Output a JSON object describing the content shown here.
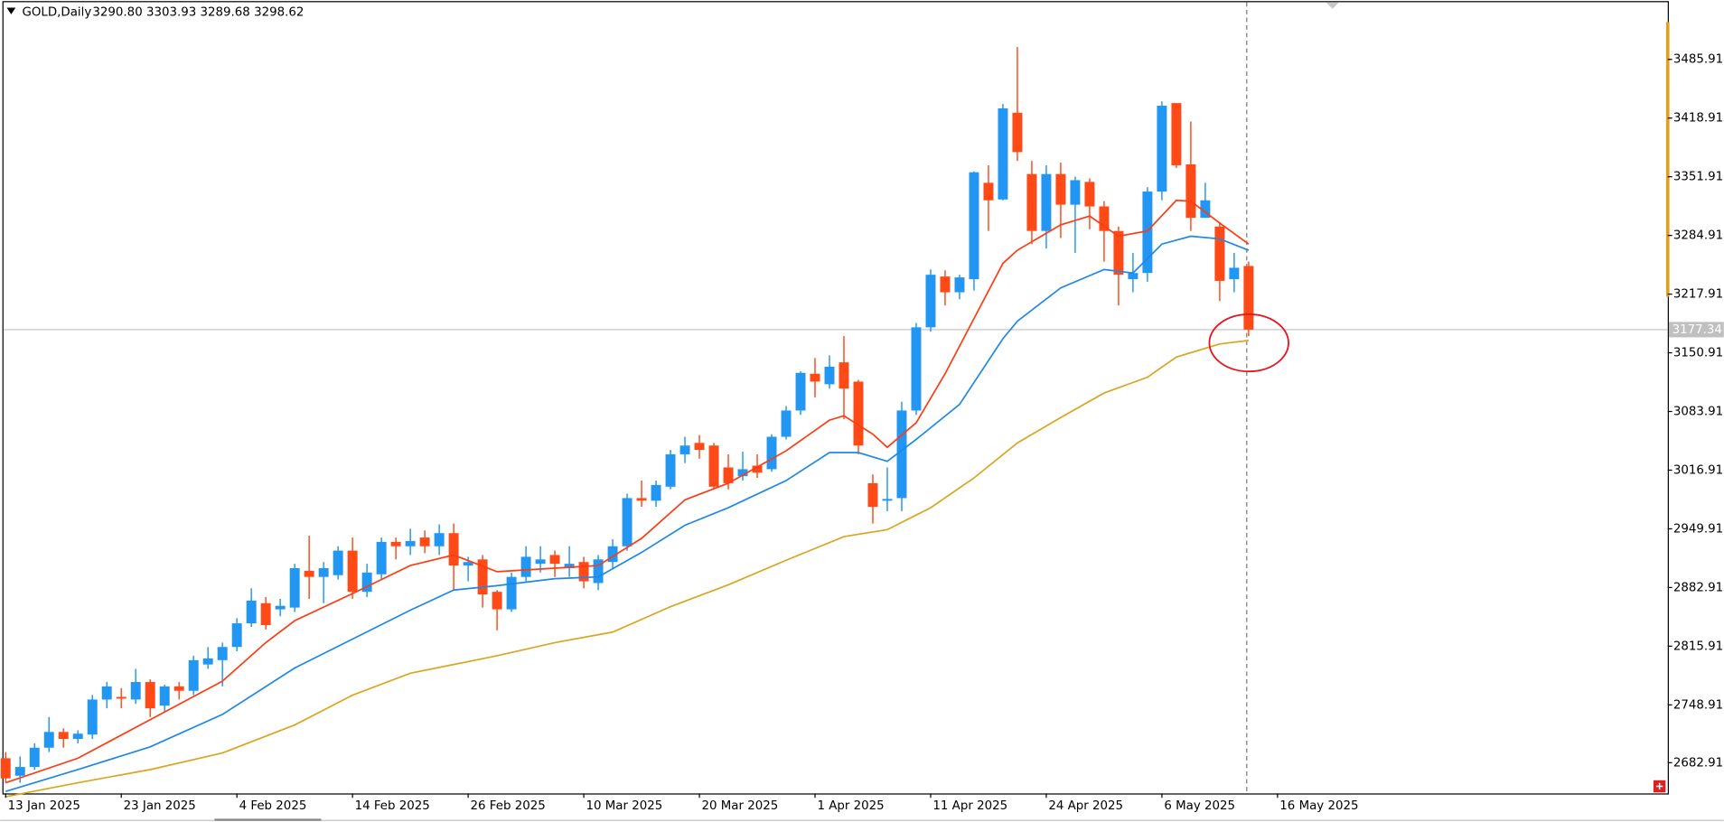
{
  "chart_data": {
    "type": "candlestick",
    "title": "GOLD,Daily",
    "subtitle": "3290.80 3303.93 3289.68 3298.62",
    "bull_color": "#2196f3",
    "bear_color": "#ff4a17",
    "open": [
      2688,
      2668,
      2678,
      2700,
      2718,
      2710,
      2715,
      2755,
      2758,
      2755,
      2775,
      2748,
      2770,
      2765,
      2795,
      2800,
      2815,
      2842,
      2865,
      2858,
      2860,
      2902,
      2895,
      2897,
      2925,
      2878,
      2898,
      2935,
      2930,
      2940,
      2930,
      2945,
      2908,
      2915,
      2878,
      2858,
      2895,
      2910,
      2920,
      2905,
      2912,
      2888,
      2912,
      2930,
      2985,
      2982,
      2998,
      3035,
      3048,
      3045,
      3020,
      3010,
      3022,
      3018,
      3055,
      3085,
      3127,
      3115,
      3140,
      3118,
      3002,
      2982,
      2985,
      3085,
      3180,
      3238,
      3220,
      3235,
      3345,
      3326,
      3425,
      3355,
      3290,
      3355,
      3320,
      3346,
      3318,
      3290,
      3235,
      3242,
      3335,
      3436,
      3366,
      3305,
      3295,
      3235,
      3250
    ],
    "high": [
      2695,
      2690,
      2705,
      2735,
      2722,
      2720,
      2760,
      2775,
      2768,
      2790,
      2778,
      2772,
      2775,
      2805,
      2815,
      2820,
      2848,
      2882,
      2872,
      2870,
      2910,
      2942,
      2912,
      2930,
      2940,
      2910,
      2940,
      2940,
      2950,
      2948,
      2955,
      2956,
      2918,
      2920,
      2880,
      2900,
      2930,
      2930,
      2925,
      2930,
      2918,
      2920,
      2938,
      2990,
      3005,
      3005,
      3040,
      3055,
      3057,
      3048,
      3035,
      3038,
      3035,
      3058,
      3090,
      3130,
      3145,
      3148,
      3170,
      3120,
      3012,
      3020,
      3095,
      3185,
      3246,
      3245,
      3240,
      3358,
      3365,
      3435,
      3500,
      3370,
      3365,
      3368,
      3352,
      3350,
      3324,
      3295,
      3265,
      3340,
      3438,
      3436,
      3415,
      3345,
      3300,
      3265,
      3255
    ],
    "low": [
      2660,
      2660,
      2675,
      2695,
      2700,
      2705,
      2710,
      2745,
      2745,
      2750,
      2735,
      2740,
      2755,
      2760,
      2790,
      2770,
      2810,
      2838,
      2835,
      2850,
      2855,
      2870,
      2865,
      2892,
      2870,
      2872,
      2892,
      2915,
      2920,
      2922,
      2920,
      2880,
      2890,
      2860,
      2834,
      2855,
      2890,
      2900,
      2895,
      2895,
      2882,
      2880,
      2905,
      2925,
      2975,
      2975,
      2995,
      3025,
      3030,
      2995,
      2995,
      3005,
      3008,
      3015,
      3052,
      3080,
      3100,
      3110,
      3075,
      3035,
      2956,
      2970,
      2970,
      3080,
      3175,
      3205,
      3212,
      3222,
      3290,
      3325,
      3370,
      3275,
      3270,
      3282,
      3265,
      3292,
      3255,
      3205,
      3220,
      3232,
      3325,
      3362,
      3290,
      3305,
      3210,
      3220,
      3170
    ],
    "close": [
      2665,
      2678,
      2700,
      2718,
      2710,
      2716,
      2755,
      2770,
      2756,
      2775,
      2745,
      2770,
      2765,
      2800,
      2802,
      2815,
      2842,
      2868,
      2840,
      2862,
      2905,
      2895,
      2905,
      2925,
      2878,
      2900,
      2935,
      2930,
      2936,
      2930,
      2945,
      2908,
      2912,
      2875,
      2858,
      2895,
      2918,
      2915,
      2910,
      2910,
      2890,
      2915,
      2930,
      2985,
      2982,
      3000,
      3035,
      3045,
      3040,
      2998,
      3002,
      3018,
      3014,
      3055,
      3085,
      3128,
      3118,
      3135,
      3110,
      3045,
      2975,
      2984,
      3085,
      3180,
      3240,
      3220,
      3237,
      3357,
      3325,
      3430,
      3380,
      3290,
      3355,
      3320,
      3348,
      3318,
      3290,
      3240,
      3242,
      3335,
      3433,
      3365,
      3305,
      3325,
      3233,
      3248,
      3177.34
    ],
    "lines": [
      {
        "color": "#ff3b12",
        "x": [
          0,
          5,
          10,
          15,
          18,
          20,
          24,
          28,
          31,
          34,
          38,
          41,
          44,
          47,
          50,
          54,
          57,
          58,
          60,
          61,
          63,
          65,
          67,
          69,
          70,
          73,
          75,
          77,
          79,
          81,
          82,
          84,
          86
        ],
        "values": [
          2660,
          2688,
          2732,
          2776,
          2820,
          2845,
          2876,
          2908,
          2920,
          2901,
          2905,
          2908,
          2939,
          2983,
          3002,
          3039,
          3074,
          3079,
          3058,
          3043,
          3071,
          3127,
          3190,
          3253,
          3268,
          3297,
          3307,
          3284,
          3290,
          3325,
          3324,
          3299,
          3275
        ]
      },
      {
        "color": "#1e88e5",
        "x": [
          0,
          5,
          10,
          15,
          20,
          24,
          28,
          31,
          34,
          38,
          41,
          44,
          47,
          50,
          54,
          57,
          59,
          61,
          63,
          66,
          69,
          70,
          73,
          76,
          78,
          80,
          82,
          84,
          86
        ],
        "values": [
          2650,
          2675,
          2701,
          2738,
          2791,
          2824,
          2857,
          2880,
          2885,
          2893,
          2895,
          2923,
          2954,
          2974,
          3005,
          3037,
          3037,
          3027,
          3052,
          3092,
          3167,
          3187,
          3225,
          3246,
          3242,
          3275,
          3284,
          3281,
          3268
        ]
      },
      {
        "color": "#daa520",
        "x": [
          0,
          5,
          10,
          15,
          20,
          24,
          28,
          31,
          34,
          38,
          42,
          46,
          50,
          54,
          58,
          61,
          64,
          67,
          70,
          73,
          76,
          79,
          81,
          84,
          86
        ],
        "values": [
          2644,
          2660,
          2675,
          2694,
          2726,
          2760,
          2785,
          2795,
          2805,
          2820,
          2832,
          2861,
          2886,
          2914,
          2941,
          2949,
          2974,
          3008,
          3048,
          3077,
          3105,
          3123,
          3146,
          3161,
          3165
        ]
      }
    ],
    "last_price": 3177.34,
    "xlim": [
      -0.15,
      115
    ],
    "xticks": [
      {
        "value": 0,
        "label": "13 Jan 2025"
      },
      {
        "value": 8,
        "label": "23 Jan 2025"
      },
      {
        "value": 16,
        "label": "4 Feb 2025"
      },
      {
        "value": 24,
        "label": "14 Feb 2025"
      },
      {
        "value": 32,
        "label": "26 Feb 2025"
      },
      {
        "value": 40,
        "label": "10 Mar 2025"
      },
      {
        "value": 48,
        "label": "20 Mar 2025"
      },
      {
        "value": 56,
        "label": "1 Apr 2025"
      },
      {
        "value": 64,
        "label": "11 Apr 2025"
      },
      {
        "value": 72,
        "label": "24 Apr 2025"
      },
      {
        "value": 80,
        "label": "6 May 2025"
      },
      {
        "value": 88,
        "label": "16 May 2025"
      }
    ],
    "ylim": [
      2647.8,
      3551.2
    ],
    "yticks": [
      3485.91,
      3418.91,
      3351.91,
      3284.91,
      3217.91,
      3150.91,
      3083.91,
      3016.91,
      2949.91,
      2882.91,
      2815.91,
      2748.91,
      2682.91
    ],
    "grid": false
  }
}
